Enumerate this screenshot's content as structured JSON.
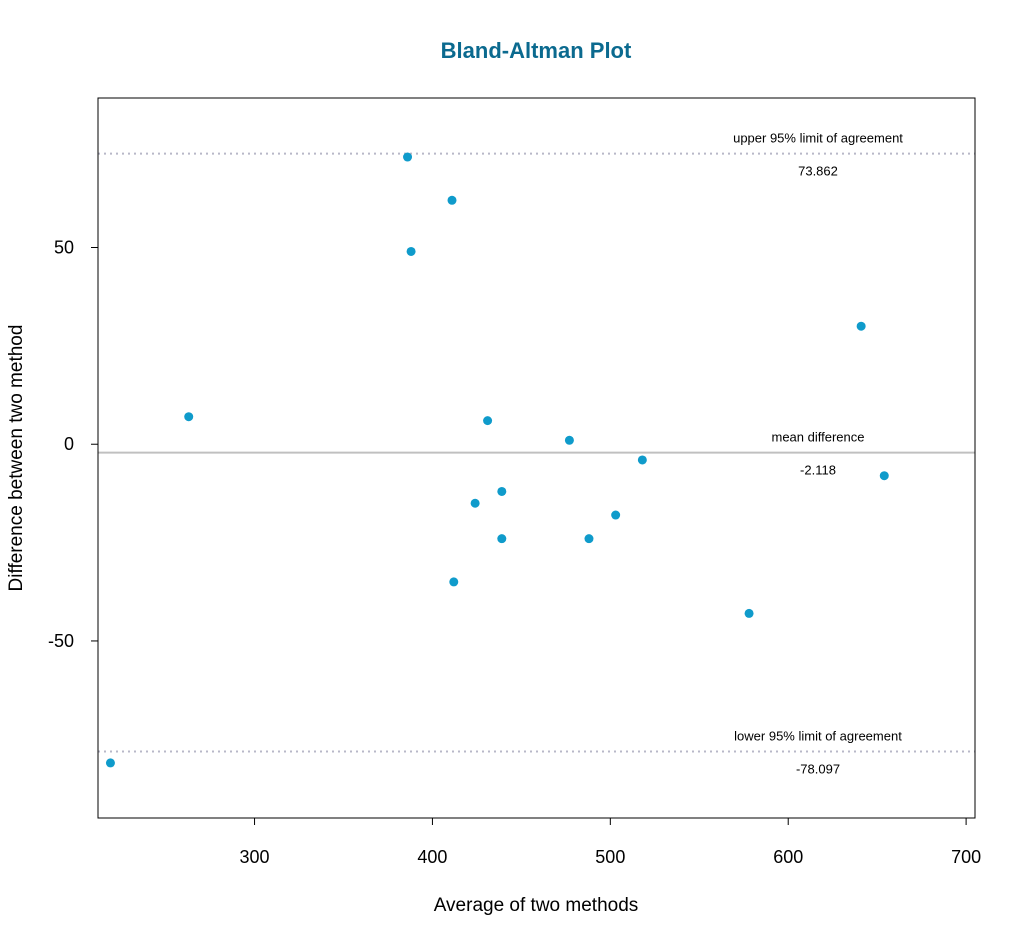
{
  "chart_data": {
    "type": "scatter",
    "title": "Bland-Altman Plot",
    "xlabel": "Average of two methods",
    "ylabel": "Difference between two method",
    "xlim": [
      212,
      705
    ],
    "ylim": [
      -95,
      88
    ],
    "x_ticks": [
      300,
      400,
      500,
      600,
      700
    ],
    "y_ticks": [
      -50,
      0,
      50
    ],
    "grid": false,
    "points": [
      {
        "x": 219,
        "y": -81
      },
      {
        "x": 263,
        "y": 7
      },
      {
        "x": 386,
        "y": 73
      },
      {
        "x": 388,
        "y": 49
      },
      {
        "x": 411,
        "y": 62
      },
      {
        "x": 412,
        "y": -35
      },
      {
        "x": 424,
        "y": -15
      },
      {
        "x": 431,
        "y": 6
      },
      {
        "x": 439,
        "y": -12
      },
      {
        "x": 439,
        "y": -24
      },
      {
        "x": 477,
        "y": 1
      },
      {
        "x": 488,
        "y": -24
      },
      {
        "x": 503,
        "y": -18
      },
      {
        "x": 518,
        "y": -4
      },
      {
        "x": 578,
        "y": -43
      },
      {
        "x": 641,
        "y": 30
      },
      {
        "x": 654,
        "y": -8
      }
    ],
    "reference_lines": [
      {
        "key": "upper",
        "label": "upper 95% limit of agreement",
        "value": 73.862,
        "value_label": "73.862",
        "style": "dotted"
      },
      {
        "key": "mean",
        "label": "mean difference",
        "value": -2.118,
        "value_label": "-2.118",
        "style": "solid"
      },
      {
        "key": "lower",
        "label": "lower 95% limit of agreement",
        "value": -78.097,
        "value_label": "-78.097",
        "style": "dotted"
      }
    ],
    "colors": {
      "title": "#0b6a8f",
      "point": "#0f9bcb",
      "limit_line": "#b8b8c8",
      "mean_line": "#c0c0c0",
      "frame": "#000000"
    }
  }
}
